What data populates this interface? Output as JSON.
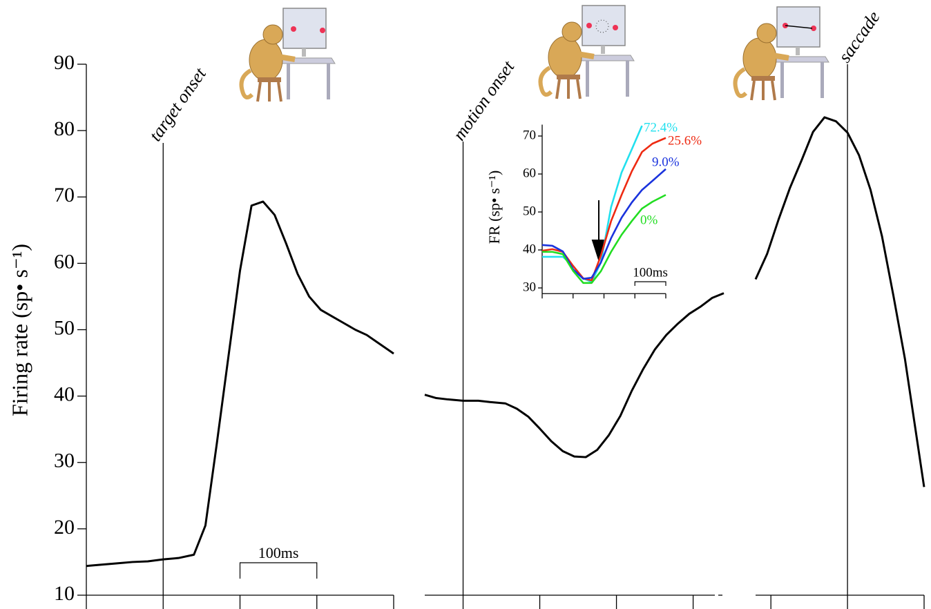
{
  "chart_data": [
    {
      "type": "line",
      "ylabel": "Firing rate (sp• s⁻¹)",
      "ylim": [
        10,
        90
      ],
      "yticks": [
        10,
        20,
        30,
        40,
        50,
        60,
        70,
        80,
        90
      ],
      "xlim": [
        -100,
        300
      ],
      "xticks": [
        -100,
        0,
        100,
        200,
        300
      ],
      "event": {
        "label": "target onset",
        "x": 0
      },
      "scale_bar": {
        "value": 100,
        "label": "100ms"
      },
      "x": [
        -100,
        -80,
        -60,
        -40,
        -20,
        0,
        20,
        40,
        55,
        70,
        85,
        100,
        115,
        130,
        145,
        160,
        175,
        190,
        205,
        220,
        235,
        250,
        265,
        280,
        300
      ],
      "series": [
        {
          "color": "#000000",
          "values": [
            14.4,
            14.6,
            14.8,
            15.0,
            15.1,
            15.4,
            15.6,
            16.1,
            20.5,
            33,
            46,
            58.9,
            68.7,
            69.3,
            67.3,
            63,
            58.4,
            55,
            53,
            52,
            51,
            50,
            49.2,
            48,
            46.4
          ]
        }
      ]
    },
    {
      "type": "line",
      "ylim": [
        10,
        90
      ],
      "xlim": [
        -50,
        340
      ],
      "xticks": [
        0,
        100,
        200,
        300
      ],
      "event": {
        "label": "motion onset",
        "x": 0
      },
      "x": [
        -50,
        -35,
        -20,
        0,
        20,
        35,
        55,
        70,
        85,
        100,
        115,
        130,
        145,
        160,
        175,
        190,
        205,
        220,
        235,
        250,
        265,
        280,
        295,
        310,
        325,
        340
      ],
      "series": [
        {
          "color": "#000000",
          "values": [
            40.2,
            39.7,
            39.5,
            39.3,
            39.3,
            39.1,
            38.9,
            38.1,
            36.9,
            35.1,
            33.2,
            31.7,
            30.9,
            30.8,
            31.9,
            34.1,
            37,
            40.8,
            44.1,
            47,
            49.2,
            50.9,
            52.4,
            53.5,
            54.8,
            55.5
          ]
        }
      ]
    },
    {
      "type": "line",
      "ylim": [
        10,
        90
      ],
      "xlim": [
        -120,
        100
      ],
      "xticks": [
        -100,
        0,
        100
      ],
      "event": {
        "label": "saccade",
        "x": 0
      },
      "x": [
        -120,
        -105,
        -90,
        -75,
        -60,
        -45,
        -30,
        -15,
        0,
        15,
        30,
        45,
        60,
        75,
        100
      ],
      "series": [
        {
          "color": "#000000",
          "values": [
            57.6,
            61.4,
            66.6,
            71.4,
            75.5,
            79.8,
            82.0,
            81.4,
            79.7,
            76.3,
            71.1,
            64.1,
            55.1,
            45.6,
            26.3
          ]
        }
      ]
    },
    {
      "type": "line",
      "ylabel": "FR (sp• s⁻¹)",
      "ylim": [
        28.5,
        73
      ],
      "yticks": [
        30,
        40,
        50,
        60,
        70
      ],
      "xlim": [
        0,
        400
      ],
      "xticks": [
        0,
        100,
        200,
        300,
        400
      ],
      "scale_bar": {
        "value": 100,
        "label": "100ms"
      },
      "x": [
        0,
        33,
        67,
        100,
        133,
        160,
        190,
        223,
        257,
        290,
        323,
        357,
        400
      ],
      "series": [
        {
          "name": "72.4%",
          "color": "#22e0ee",
          "values": [
            38.2,
            38.2,
            38.2,
            35.8,
            32.5,
            31.6,
            36.7,
            51.3,
            60.4,
            66.5,
            72.7,
            null,
            null
          ]
        },
        {
          "name": "25.6%",
          "color": "#ee2a12",
          "values": [
            39.8,
            40.2,
            39.5,
            35.8,
            32.5,
            32,
            38.5,
            47.6,
            54.5,
            60.7,
            65.8,
            68,
            69.5
          ]
        },
        {
          "name": "9.0%",
          "color": "#1a33dd",
          "values": [
            41.3,
            41.1,
            39.6,
            34.9,
            32.4,
            32.7,
            36.7,
            43.1,
            48.5,
            52.5,
            55.8,
            58.2,
            61.3
          ]
        },
        {
          "name": "0%",
          "color": "#22dd22",
          "values": [
            39.5,
            39.5,
            38.9,
            34.5,
            31.3,
            31.3,
            34.4,
            39.5,
            44,
            47.6,
            50.9,
            52.7,
            54.5
          ]
        }
      ]
    }
  ]
}
